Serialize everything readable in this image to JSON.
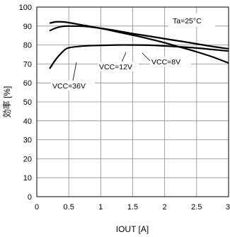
{
  "chart_data": {
    "type": "line",
    "xlabel": "IOUT [A]",
    "ylabel": "効率 [%]",
    "xlim": [
      0,
      3
    ],
    "ylim": [
      0,
      100
    ],
    "xticks": [
      "0",
      "0.5",
      "1",
      "1.5",
      "2",
      "2.5",
      "3"
    ],
    "yticks": [
      "0",
      "10",
      "20",
      "30",
      "40",
      "50",
      "60",
      "70",
      "80",
      "90",
      "100"
    ],
    "grid": true,
    "annotation_temp": "Ta=25°C",
    "series": [
      {
        "name": "VCC=8V",
        "points": [
          [
            0.2,
            91.5
          ],
          [
            0.3,
            92.2
          ],
          [
            0.4,
            92.2
          ],
          [
            0.5,
            91.8
          ],
          [
            0.75,
            90.3
          ],
          [
            1.0,
            88.8
          ],
          [
            1.25,
            87.0
          ],
          [
            1.5,
            85.2
          ],
          [
            1.75,
            83.3
          ],
          [
            2.0,
            81.2
          ],
          [
            2.25,
            78.8
          ],
          [
            2.5,
            76.4
          ],
          [
            2.75,
            73.7
          ],
          [
            3.0,
            70.5
          ]
        ]
      },
      {
        "name": "VCC=12V",
        "points": [
          [
            0.2,
            87.5
          ],
          [
            0.3,
            89.0
          ],
          [
            0.4,
            89.8
          ],
          [
            0.5,
            90.0
          ],
          [
            0.75,
            89.8
          ],
          [
            1.0,
            88.8
          ],
          [
            1.25,
            87.5
          ],
          [
            1.5,
            86.0
          ],
          [
            1.75,
            84.7
          ],
          [
            2.0,
            83.3
          ],
          [
            2.25,
            82.0
          ],
          [
            2.5,
            80.6
          ],
          [
            2.75,
            79.2
          ],
          [
            3.0,
            78.0
          ]
        ]
      },
      {
        "name": "VCC=36V",
        "points": [
          [
            0.2,
            67.5
          ],
          [
            0.3,
            72.5
          ],
          [
            0.4,
            76.3
          ],
          [
            0.5,
            78.5
          ],
          [
            0.75,
            79.5
          ],
          [
            1.0,
            79.8
          ],
          [
            1.25,
            80.0
          ],
          [
            1.5,
            80.0
          ],
          [
            1.75,
            79.9
          ],
          [
            2.0,
            79.5
          ],
          [
            2.25,
            79.0
          ],
          [
            2.5,
            78.4
          ],
          [
            2.75,
            77.6
          ],
          [
            3.0,
            76.8
          ]
        ]
      }
    ]
  }
}
